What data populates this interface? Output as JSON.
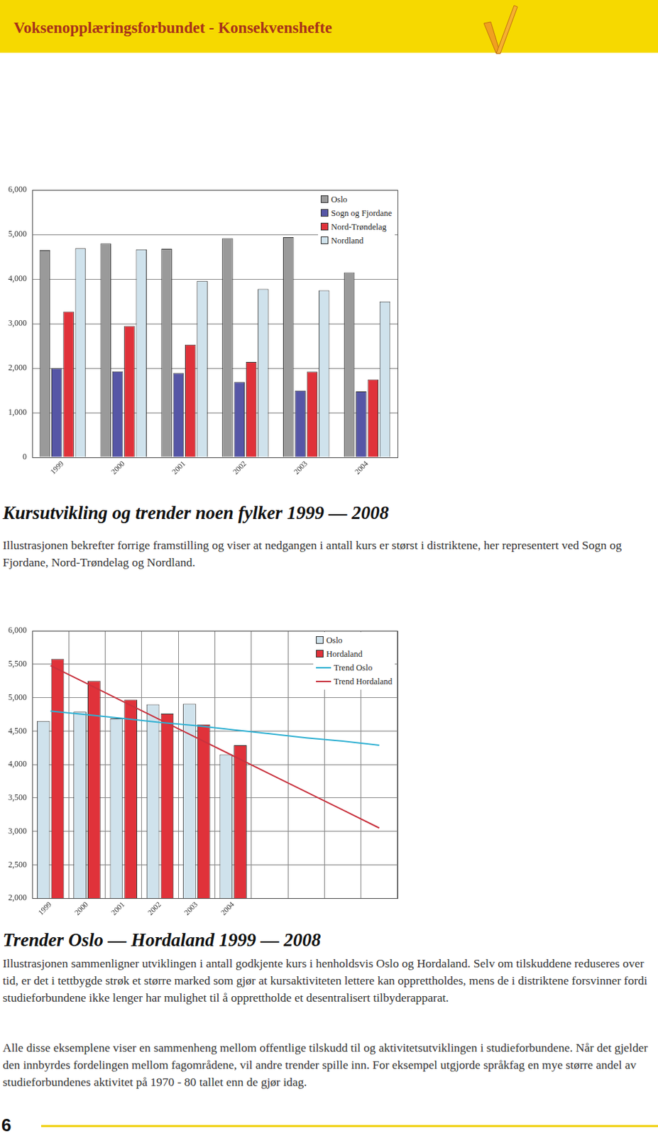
{
  "header": {
    "title": "Voksenopplæringsforbundet - Konsekvenshefte"
  },
  "chart_data": [
    {
      "type": "bar",
      "categories": [
        "1999",
        "2000",
        "2001",
        "2002",
        "2003",
        "2004"
      ],
      "series": [
        {
          "name": "Oslo",
          "color": "#9a9a9a",
          "values": [
            4650,
            4800,
            4680,
            4920,
            4940,
            4150
          ]
        },
        {
          "name": "Sogn og Fjordane",
          "color": "#5656a6",
          "values": [
            2000,
            1930,
            1890,
            1690,
            1500,
            1480
          ]
        },
        {
          "name": "Nord-Trøndelag",
          "color": "#e0323a",
          "values": [
            3270,
            2950,
            2530,
            2140,
            1920,
            1750
          ]
        },
        {
          "name": "Nordland",
          "color": "#cfe2ec",
          "values": [
            4690,
            4670,
            3960,
            3780,
            3750,
            3500
          ]
        }
      ],
      "ylim": [
        0,
        6000
      ],
      "yticks": [
        0,
        1000,
        2000,
        3000,
        4000,
        5000,
        6000
      ],
      "grid": "y",
      "legend": "top-right"
    },
    {
      "type": "bar",
      "categories": [
        "1999",
        "2000",
        "2001",
        "2002",
        "2003",
        "2004",
        null,
        null,
        null,
        null
      ],
      "series": [
        {
          "name": "Oslo",
          "type": "bar",
          "color": "#cfe2ec",
          "values": [
            4650,
            4790,
            4690,
            4900,
            4910,
            4150,
            null,
            null,
            null,
            null
          ]
        },
        {
          "name": "Hordaland",
          "type": "bar",
          "color": "#e0323a",
          "values": [
            5580,
            5250,
            4970,
            4760,
            4600,
            4290,
            null,
            null,
            null,
            null
          ]
        },
        {
          "name": "Trend Oslo",
          "type": "line",
          "color": "#2fb0d2",
          "values": [
            4800,
            4745,
            4690,
            4630,
            4580,
            4520,
            4460,
            4400,
            4350,
            4290
          ]
        },
        {
          "name": "Trend Hordaland",
          "type": "line",
          "color": "#c8323e",
          "values": [
            5480,
            5210,
            4940,
            4670,
            4400,
            4130,
            3860,
            3590,
            3320,
            3050
          ]
        }
      ],
      "ylim": [
        2000,
        6000
      ],
      "yticks": [
        2000,
        2500,
        3000,
        3500,
        4000,
        4500,
        5000,
        5500,
        6000
      ],
      "grid": true,
      "legend": "top-right"
    }
  ],
  "sections": [
    {
      "heading": "Kursutvikling og trender noen fylker 1999 — 2008",
      "paragraphs": [
        "Illustrasjonen bekrefter forrige framstilling og viser at nedgangen i antall kurs er størst i distriktene, her representert ved Sogn og Fjordane, Nord-Trøndelag og Nordland."
      ]
    },
    {
      "heading": "Trender Oslo — Hordaland 1999 — 2008",
      "paragraphs": [
        "Illustrasjonen sammenligner utviklingen i antall godkjente kurs i henholdsvis Oslo og Hordaland. Selv om tilskuddene reduseres over tid, er det i tettbygde strøk et større marked som gjør at kursaktiviteten lettere kan opprettholdes, mens de i distriktene forsvinner fordi studieforbundene ikke lenger har mulighet til å opprettholde et desentralisert tilbyderapparat.",
        "Alle disse eksemplene viser en sammenheng mellom offentlige tilskudd til og aktivitetsutviklingen i studieforbundene. Når det gjelder den innbyrdes fordelingen mellom fagområdene, vil andre trender spille inn. For eksempel utgjorde språkfag en mye større andel av studieforbundenes aktivitet på 1970 - 80 tallet enn de gjør idag."
      ]
    }
  ],
  "page_number": "6"
}
